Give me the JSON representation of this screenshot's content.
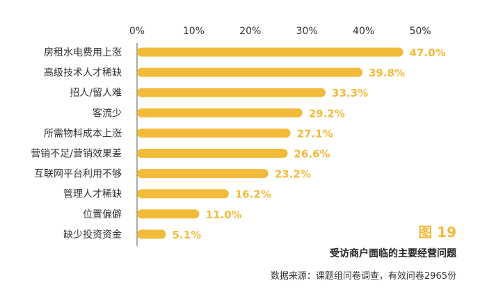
{
  "chart_data": {
    "type": "bar",
    "orientation": "horizontal",
    "categories": [
      "房租水电费用上涨",
      "高级技术人才稀缺",
      "招人/留人难",
      "客流少",
      "所需物料成本上涨",
      "营销不足/营销效果差",
      "互联网平台利用不够",
      "管理人才稀缺",
      "位置偏僻",
      "缺少投资资金"
    ],
    "values": [
      47.0,
      39.8,
      33.3,
      29.2,
      27.1,
      26.6,
      23.2,
      16.2,
      11.0,
      5.1
    ],
    "value_labels": [
      "47.0%",
      "39.8%",
      "33.3%",
      "29.2%",
      "27.1%",
      "26.6%",
      "23.2%",
      "16.2%",
      "11.0%",
      "5.1%"
    ],
    "xticks": [
      "0%",
      "10%",
      "20%",
      "30%",
      "40%",
      "50%"
    ],
    "xlim": [
      0,
      50
    ],
    "xaxis_position": "top",
    "grid": false,
    "bar_color": "#f2bb3a",
    "label_color": "#f2bb3a",
    "figure_number": "图 19",
    "title": "受访商户面临的主要经营问题",
    "source": "数据来源：课题组问卷调查，有效问卷2965份"
  }
}
